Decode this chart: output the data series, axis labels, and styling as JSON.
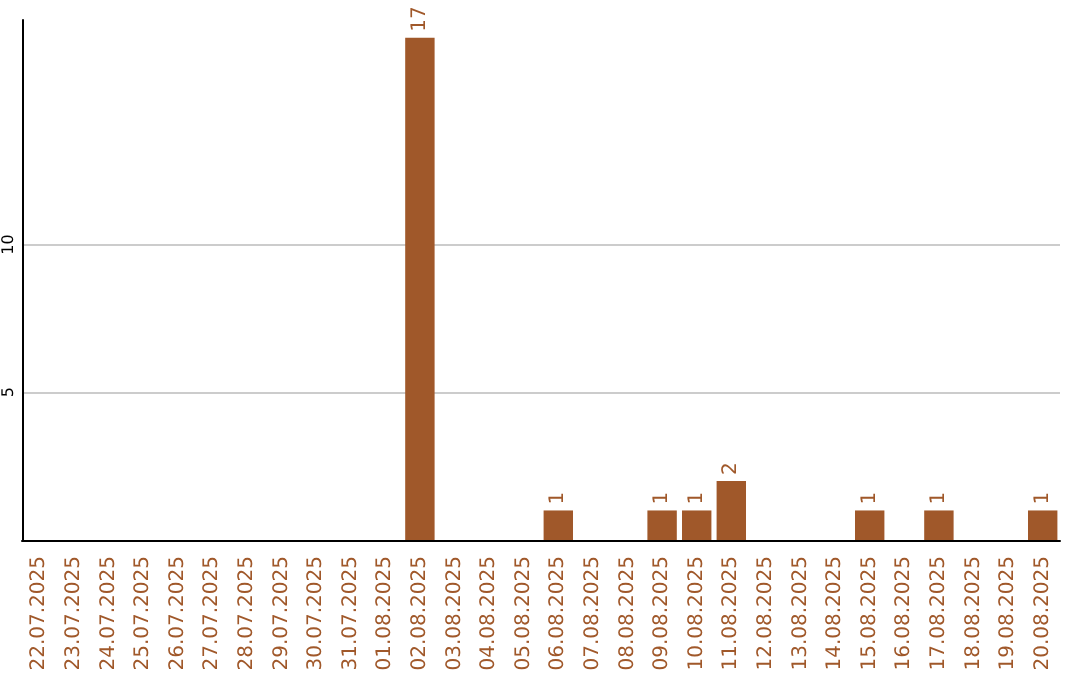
{
  "chart_data": {
    "type": "bar",
    "categories": [
      "22.07.2025",
      "23.07.2025",
      "24.07.2025",
      "25.07.2025",
      "26.07.2025",
      "27.07.2025",
      "28.07.2025",
      "29.07.2025",
      "30.07.2025",
      "31.07.2025",
      "01.08.2025",
      "02.08.2025",
      "03.08.2025",
      "04.08.2025",
      "05.08.2025",
      "06.08.2025",
      "07.08.2025",
      "08.08.2025",
      "09.08.2025",
      "10.08.2025",
      "11.08.2025",
      "12.08.2025",
      "13.08.2025",
      "14.08.2025",
      "15.08.2025",
      "16.08.2025",
      "17.08.2025",
      "18.08.2025",
      "19.08.2025",
      "20.08.2025"
    ],
    "values": [
      0,
      0,
      0,
      0,
      0,
      0,
      0,
      0,
      0,
      0,
      0,
      17,
      0,
      0,
      0,
      1,
      0,
      0,
      1,
      1,
      2,
      0,
      0,
      0,
      1,
      0,
      1,
      0,
      0,
      1
    ],
    "value_labels": [
      null,
      null,
      null,
      null,
      null,
      null,
      null,
      null,
      null,
      null,
      null,
      "17",
      null,
      null,
      null,
      "1",
      null,
      null,
      "1",
      "1",
      "2",
      null,
      null,
      null,
      "1",
      null,
      "1",
      null,
      null,
      "1"
    ],
    "color": "#a0582a",
    "ylim": [
      0,
      17.6
    ],
    "yticks": [
      5,
      10
    ],
    "grid": "y"
  }
}
